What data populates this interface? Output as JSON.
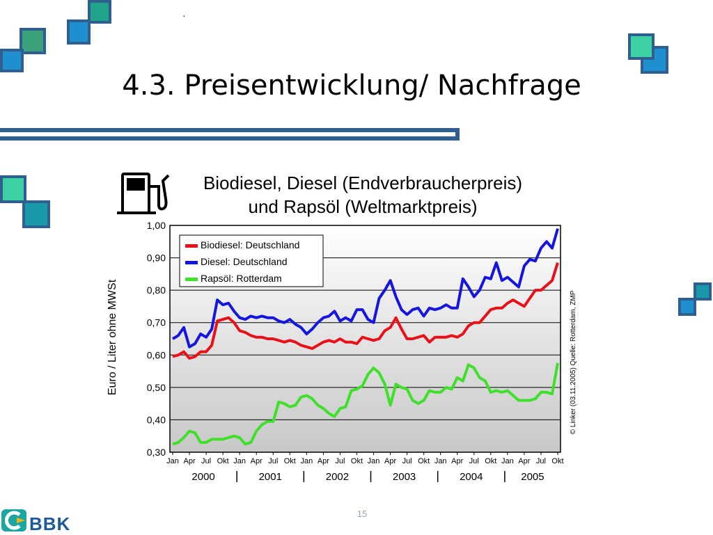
{
  "slide": {
    "title": "4.3. Preisentwicklung/ Nachfrage",
    "dot": "·",
    "page_number": "15",
    "logo_text": "BBK"
  },
  "colors": {
    "teal": "#3fb6a3",
    "blue": "#1f8fd0",
    "frame": "#2f5f8f",
    "biodiesel": "#e8111a",
    "diesel": "#1515e0",
    "rapsoel": "#3ee02a"
  },
  "chart_data": {
    "type": "line",
    "title": "Biodiesel, Diesel (Endverbraucherpreis)",
    "subtitle": "und Rapsöl (Weltmarktpreis)",
    "ylabel": "Euro / Liter ohne MWSt",
    "ylim": [
      0.3,
      1.0
    ],
    "yticks": [
      "1,00",
      "0,90",
      "0,80",
      "0,70",
      "0,60",
      "0,50",
      "0,40",
      "0,30"
    ],
    "month_labels": [
      "Jan",
      "Apr",
      "Jul",
      "Okt"
    ],
    "years": [
      "2000",
      "2001",
      "2002",
      "2003",
      "2004",
      "2005"
    ],
    "x": [
      "2000-01",
      "2000-02",
      "2000-03",
      "2000-04",
      "2000-05",
      "2000-06",
      "2000-07",
      "2000-08",
      "2000-09",
      "2000-10",
      "2000-11",
      "2000-12",
      "2001-01",
      "2001-02",
      "2001-03",
      "2001-04",
      "2001-05",
      "2001-06",
      "2001-07",
      "2001-08",
      "2001-09",
      "2001-10",
      "2001-11",
      "2001-12",
      "2002-01",
      "2002-02",
      "2002-03",
      "2002-04",
      "2002-05",
      "2002-06",
      "2002-07",
      "2002-08",
      "2002-09",
      "2002-10",
      "2002-11",
      "2002-12",
      "2003-01",
      "2003-02",
      "2003-03",
      "2003-04",
      "2003-05",
      "2003-06",
      "2003-07",
      "2003-08",
      "2003-09",
      "2003-10",
      "2003-11",
      "2003-12",
      "2004-01",
      "2004-02",
      "2004-03",
      "2004-04",
      "2004-05",
      "2004-06",
      "2004-07",
      "2004-08",
      "2004-09",
      "2004-10",
      "2004-11",
      "2004-12",
      "2005-01",
      "2005-02",
      "2005-03",
      "2005-04",
      "2005-05",
      "2005-06",
      "2005-07",
      "2005-08",
      "2005-09",
      "2005-10"
    ],
    "series": [
      {
        "name": "Biodiesel: Deutschland",
        "color": "#e8111a",
        "values": [
          0.595,
          0.6,
          0.61,
          0.59,
          0.595,
          0.61,
          0.61,
          0.63,
          0.705,
          0.71,
          0.715,
          0.7,
          0.675,
          0.67,
          0.66,
          0.655,
          0.655,
          0.65,
          0.65,
          0.645,
          0.64,
          0.645,
          0.64,
          0.63,
          0.625,
          0.62,
          0.63,
          0.64,
          0.645,
          0.64,
          0.65,
          0.64,
          0.64,
          0.635,
          0.655,
          0.65,
          0.645,
          0.65,
          0.675,
          0.685,
          0.715,
          0.68,
          0.65,
          0.65,
          0.655,
          0.66,
          0.64,
          0.655,
          0.655,
          0.655,
          0.66,
          0.655,
          0.665,
          0.69,
          0.7,
          0.7,
          0.72,
          0.74,
          0.745,
          0.745,
          0.76,
          0.77,
          0.76,
          0.75,
          0.775,
          0.8,
          0.8,
          0.815,
          0.83,
          0.885
        ]
      },
      {
        "name": "Diesel: Deutschland",
        "color": "#1515e0",
        "values": [
          0.65,
          0.66,
          0.685,
          0.625,
          0.635,
          0.665,
          0.655,
          0.68,
          0.77,
          0.755,
          0.76,
          0.735,
          0.715,
          0.71,
          0.72,
          0.715,
          0.72,
          0.715,
          0.715,
          0.705,
          0.7,
          0.71,
          0.695,
          0.685,
          0.665,
          0.68,
          0.7,
          0.715,
          0.72,
          0.735,
          0.705,
          0.715,
          0.705,
          0.74,
          0.74,
          0.71,
          0.7,
          0.775,
          0.8,
          0.83,
          0.78,
          0.74,
          0.725,
          0.74,
          0.745,
          0.72,
          0.745,
          0.74,
          0.745,
          0.755,
          0.745,
          0.745,
          0.835,
          0.81,
          0.78,
          0.8,
          0.84,
          0.835,
          0.885,
          0.83,
          0.84,
          0.825,
          0.81,
          0.875,
          0.895,
          0.89,
          0.93,
          0.95,
          0.93,
          0.99
        ]
      },
      {
        "name": "Rapsöl: Rotterdam",
        "color": "#3ee02a",
        "values": [
          0.325,
          0.33,
          0.345,
          0.365,
          0.36,
          0.33,
          0.33,
          0.34,
          0.34,
          0.34,
          0.345,
          0.35,
          0.345,
          0.325,
          0.33,
          0.365,
          0.385,
          0.395,
          0.395,
          0.455,
          0.45,
          0.44,
          0.445,
          0.47,
          0.475,
          0.465,
          0.445,
          0.435,
          0.42,
          0.41,
          0.435,
          0.44,
          0.49,
          0.495,
          0.505,
          0.54,
          0.56,
          0.545,
          0.51,
          0.445,
          0.51,
          0.5,
          0.495,
          0.46,
          0.45,
          0.46,
          0.49,
          0.485,
          0.485,
          0.5,
          0.495,
          0.53,
          0.52,
          0.57,
          0.56,
          0.53,
          0.52,
          0.485,
          0.49,
          0.485,
          0.49,
          0.475,
          0.46,
          0.46,
          0.46,
          0.465,
          0.485,
          0.485,
          0.48,
          0.575
        ]
      }
    ],
    "legend_position": "top-left",
    "grid": true,
    "credit": "© Linker (03.11.2005) Quelle: Rotterdam, ZMP"
  }
}
